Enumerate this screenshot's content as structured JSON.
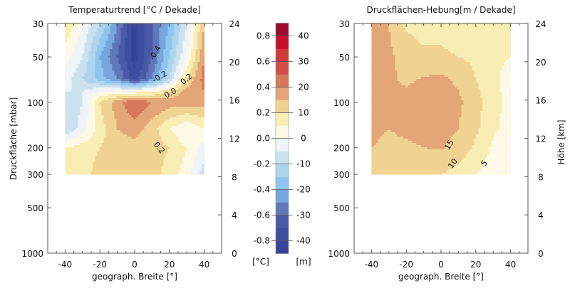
{
  "chart_data": [
    {
      "type": "heatmap",
      "subtype": "filled-contour",
      "title": "Temperaturtrend [°C / Dekade]",
      "xlabel": "geograph. Breite [°]",
      "ylabel": "Druckfläche [mbar]",
      "ylabel_right": "Höhe [km]",
      "xlim": [
        -50,
        50
      ],
      "ylim": [
        1000,
        30
      ],
      "yscale": "log",
      "xticks": [
        -40,
        -20,
        0,
        20,
        40
      ],
      "yticks": [
        30,
        50,
        100,
        200,
        300,
        500,
        1000
      ],
      "yticks_right": [
        0,
        4,
        8,
        12,
        16,
        20,
        24
      ],
      "lat": [
        -40,
        -30,
        -20,
        -10,
        0,
        10,
        20,
        30,
        40
      ],
      "pressure": [
        30,
        50,
        70,
        85,
        100,
        150,
        200,
        300
      ],
      "values": [
        [
          0.2,
          0.0,
          -0.2,
          -0.5,
          -0.85,
          -0.6,
          -0.4,
          -0.1,
          0.3
        ],
        [
          0.05,
          -0.1,
          -0.4,
          -0.6,
          -0.85,
          -0.6,
          -0.3,
          0.0,
          0.4
        ],
        [
          -0.05,
          -0.2,
          -0.35,
          -0.5,
          -0.75,
          -0.5,
          -0.2,
          0.2,
          0.45
        ],
        [
          -0.1,
          -0.1,
          0.0,
          0.05,
          0.05,
          0.1,
          0.2,
          0.35,
          0.4
        ],
        [
          -0.2,
          -0.1,
          0.2,
          0.35,
          0.5,
          0.4,
          0.35,
          0.35,
          0.35
        ],
        [
          -0.2,
          -0.05,
          0.15,
          0.3,
          0.35,
          0.25,
          0.1,
          0.0,
          0.1
        ],
        [
          0.1,
          0.15,
          0.2,
          0.25,
          0.25,
          0.25,
          0.2,
          0.1,
          -0.05
        ],
        [
          0.15,
          0.15,
          0.25,
          0.25,
          0.25,
          0.25,
          0.15,
          0.05,
          -0.15
        ]
      ],
      "scale_divisor": 1,
      "contour_labels": [
        {
          "text": "-0.4",
          "lat": 13,
          "p": 48,
          "angle": -60
        },
        {
          "text": "-0.2",
          "lat": 10,
          "p": 77,
          "angle": -40
        },
        {
          "text": "0.0",
          "lat": 8,
          "p": 84,
          "angle": -40
        },
        {
          "text": "0.2",
          "lat": 26,
          "p": 82,
          "angle": -45
        },
        {
          "text": "0.2",
          "lat": 13,
          "p": 205,
          "angle": 50
        }
      ]
    },
    {
      "type": "heatmap",
      "subtype": "filled-contour",
      "title": "Druckflächen-Hebung[m / Dekade]",
      "xlabel": "geograph. Breite [°]",
      "ylabel_right": "Höhe [km]",
      "xlim": [
        -50,
        50
      ],
      "ylim": [
        1000,
        30
      ],
      "yscale": "log",
      "xticks": [
        -40,
        -20,
        0,
        20,
        40
      ],
      "yticks": [
        30,
        50,
        100,
        200,
        300,
        500,
        1000
      ],
      "yticks_right": [
        0,
        4,
        8,
        12,
        16,
        20,
        24
      ],
      "lat": [
        -40,
        -30,
        -20,
        -10,
        0,
        10,
        20,
        30,
        40
      ],
      "pressure": [
        30,
        50,
        70,
        100,
        150,
        200,
        300
      ],
      "values": [
        [
          17,
          15,
          9,
          8,
          8,
          7,
          7,
          6,
          6
        ],
        [
          17,
          16,
          13,
          11,
          11,
          10,
          9,
          6,
          5
        ],
        [
          17,
          16,
          14,
          15.5,
          16,
          14,
          10,
          6,
          3
        ],
        [
          17,
          15,
          17,
          18,
          18,
          16,
          12,
          7,
          3
        ],
        [
          16,
          15,
          16,
          17,
          17,
          15,
          11,
          6,
          3
        ],
        [
          15,
          14,
          14,
          15,
          15.5,
          13,
          9,
          4,
          2
        ],
        [
          14,
          13,
          12,
          11,
          10,
          8,
          5,
          2,
          1
        ]
      ],
      "scale_divisor": 50,
      "contour_labels": [
        {
          "text": "15",
          "lat": 6,
          "p": 195,
          "angle": -60
        },
        {
          "text": "10",
          "lat": 8,
          "p": 260,
          "angle": -55
        },
        {
          "text": "5",
          "lat": 26,
          "p": 260,
          "angle": -50
        }
      ]
    }
  ],
  "colorbar": {
    "levels_left": [
      "0.8",
      "0.6",
      "0.4",
      "0.2",
      "0.0",
      "-0.2",
      "-0.4",
      "-0.6",
      "-0.8"
    ],
    "levels_right": [
      "40",
      "30",
      "20",
      "10",
      "0",
      "-10",
      "-20",
      "-30",
      "-40"
    ],
    "unit_left": "[°C]",
    "unit_right": "[m]",
    "range": [
      -0.9,
      0.9
    ],
    "colors": [
      "#36449a",
      "#3d4da0",
      "#4a5aa8",
      "#6178b8",
      "#78a6dc",
      "#8fc6ef",
      "#afd5ec",
      "#cbe2ee",
      "#eef4f8",
      "#fdf9e6",
      "#f8edb3",
      "#f0d393",
      "#e4a676",
      "#d8785a",
      "#d04d45",
      "#d13a3b",
      "#c8102e",
      "#9b0d2b"
    ]
  }
}
